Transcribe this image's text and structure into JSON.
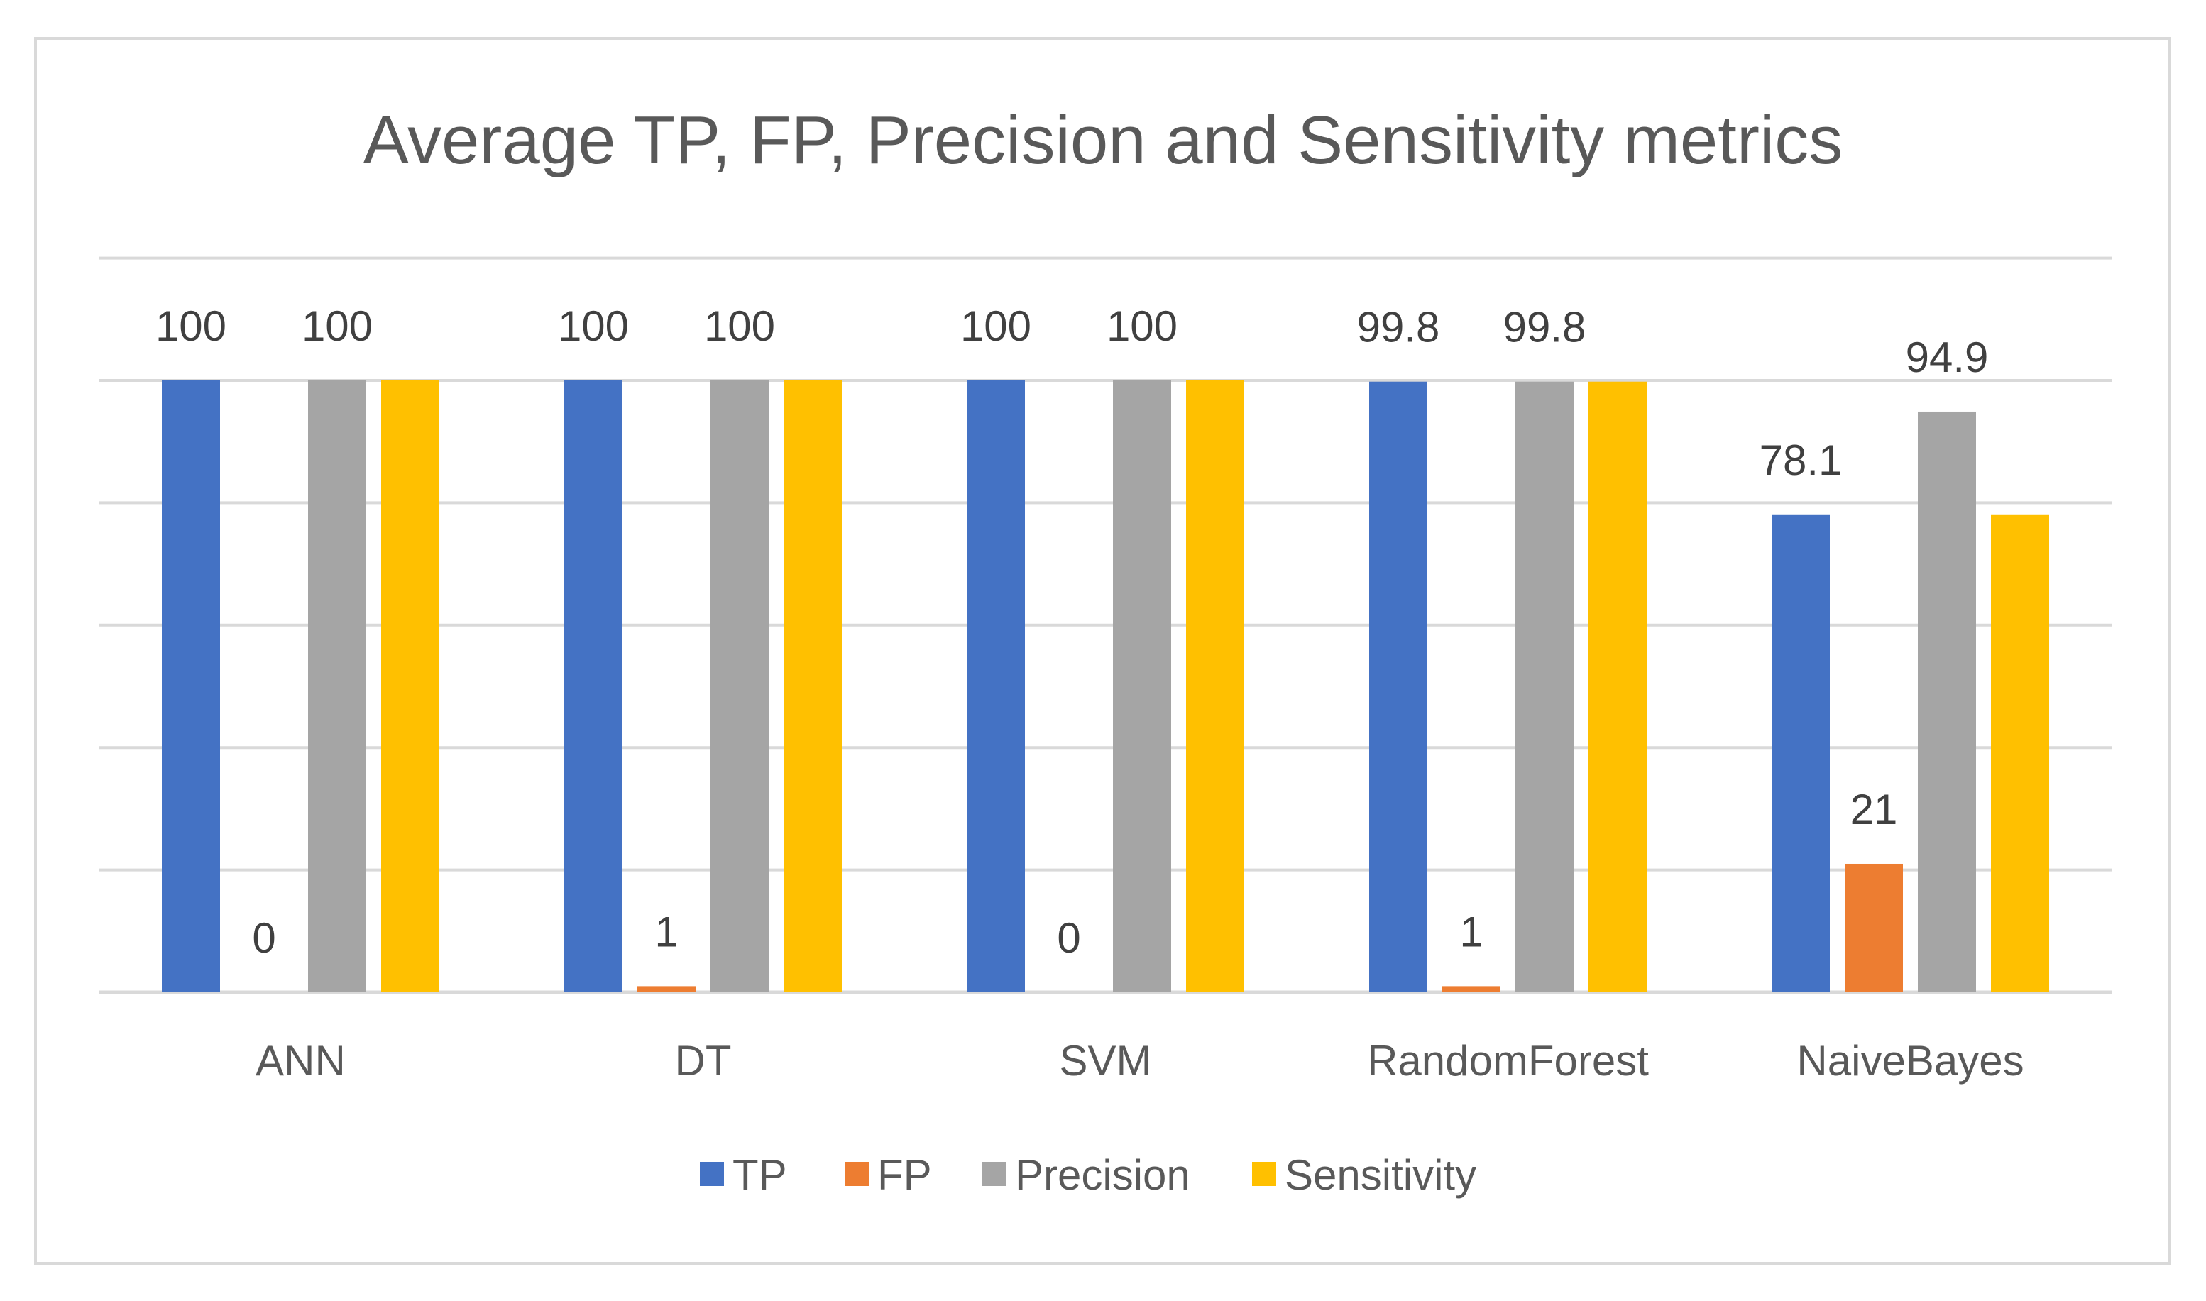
{
  "chart_data": {
    "type": "bar",
    "title": "Average TP, FP, Precision and Sensitivity metrics",
    "categories": [
      "ANN",
      "DT",
      "SVM",
      "RandomForest",
      "NaiveBayes"
    ],
    "series": [
      {
        "name": "TP",
        "color": "#4472C4",
        "values": [
          100,
          100,
          100,
          99.8,
          78.1
        ],
        "labels": [
          "100",
          "100",
          "100",
          "99.8",
          "78.1"
        ]
      },
      {
        "name": "FP",
        "color": "#ED7D31",
        "values": [
          0,
          1,
          0,
          1,
          21
        ],
        "labels": [
          "0",
          "1",
          "0",
          "1",
          "21"
        ]
      },
      {
        "name": "Precision",
        "color": "#A5A5A5",
        "values": [
          100,
          100,
          100,
          99.8,
          94.9
        ],
        "labels": [
          "100",
          "100",
          "100",
          "99.8",
          "94.9"
        ]
      },
      {
        "name": "Sensitivity",
        "color": "#FFC000",
        "values": [
          100,
          100,
          100,
          99.8,
          78.1
        ],
        "labels": []
      }
    ],
    "ylim": [
      0,
      120
    ],
    "grid": true,
    "legend": "bottom"
  }
}
